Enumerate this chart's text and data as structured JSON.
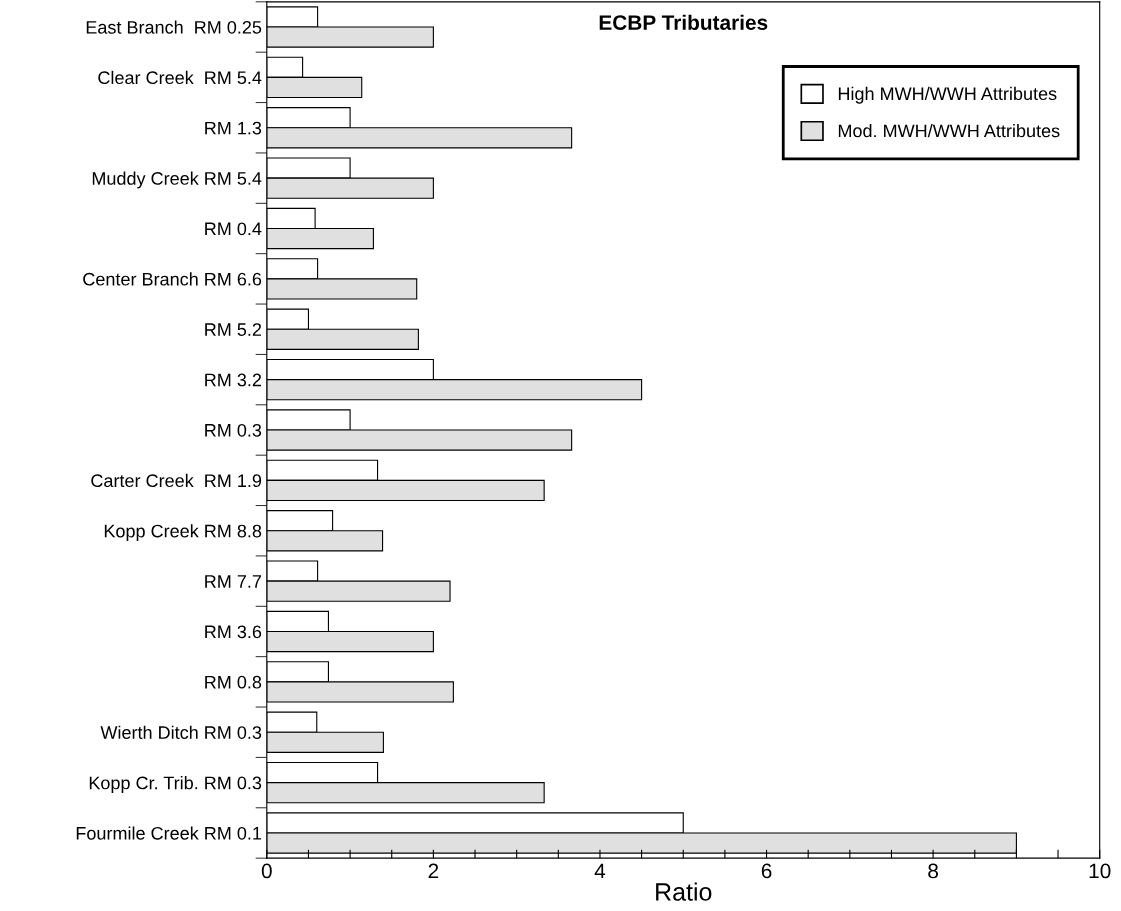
{
  "chart_data": {
    "type": "bar",
    "orientation": "horizontal",
    "title": "ECBP Tributaries",
    "xlabel": "Ratio",
    "categories": [
      "East Branch  RM 0.25",
      "Clear Creek  RM 5.4",
      "RM 1.3",
      "Muddy Creek RM 5.4",
      "RM 0.4",
      "Center Branch RM 6.6",
      "RM 5.2",
      "RM 3.2",
      "RM 0.3",
      "Carter Creek  RM 1.9",
      "Kopp Creek RM 8.8",
      "RM 7.7",
      "RM 3.6",
      "RM 0.8",
      "Wierth Ditch RM 0.3",
      "Kopp Cr. Trib. RM 0.3",
      "Fourmile Creek RM 0.1"
    ],
    "series": [
      {
        "name": "High MWH/WWH Attributes",
        "color": "#ffffff",
        "values": [
          0.61,
          0.43,
          1.0,
          1.0,
          0.58,
          0.61,
          0.5,
          2.0,
          1.0,
          1.33,
          0.79,
          0.61,
          0.74,
          0.74,
          0.6,
          1.33,
          5.0
        ]
      },
      {
        "name": "Mod. MWH/WWH Attributes",
        "color": "#e0e0e0",
        "values": [
          2.0,
          1.14,
          3.66,
          2.0,
          1.28,
          1.8,
          1.82,
          4.5,
          3.66,
          3.33,
          1.39,
          2.2,
          2.0,
          2.24,
          1.4,
          3.33,
          9.0
        ]
      }
    ],
    "xlim": [
      0,
      10
    ],
    "xticks": [
      0,
      {
        "value": 0.5,
        "label": null
      },
      {
        "value": 1,
        "label": null
      },
      {
        "value": 1.5,
        "label": null
      },
      2,
      {
        "value": 2.5,
        "label": null
      },
      {
        "value": 3,
        "label": null
      },
      {
        "value": 3.5,
        "label": null
      },
      4,
      {
        "value": 4.5,
        "label": null
      },
      {
        "value": 5,
        "label": null
      },
      {
        "value": 5.5,
        "label": null
      },
      6,
      {
        "value": 6.5,
        "label": null
      },
      {
        "value": 7,
        "label": null
      },
      {
        "value": 7.5,
        "label": null
      },
      8,
      {
        "value": 8.5,
        "label": null
      },
      {
        "value": 9,
        "label": null
      },
      {
        "value": 9.5,
        "label": null
      },
      10
    ],
    "grid": false,
    "legend": "top right"
  }
}
